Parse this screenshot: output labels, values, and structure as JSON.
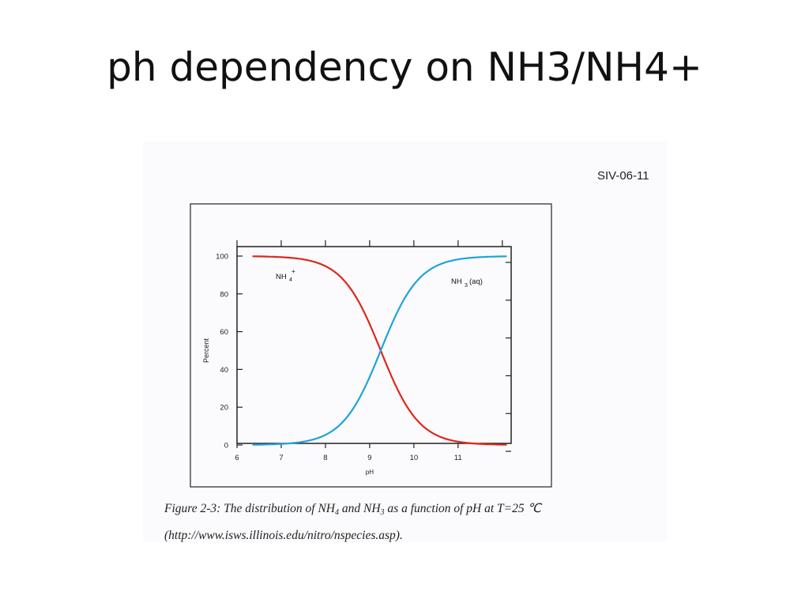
{
  "slide": {
    "title": "ph dependency on NH3/NH4+"
  },
  "scan": {
    "code": "SIV-06-11",
    "caption": {
      "part1": "Figure 2-3: The distribution of NH",
      "sub1": "4",
      "part2": " and NH",
      "sub2": "3",
      "part3": " as a function of pH at T=25 ℃",
      "line2": "(http://www.isws.illinois.edu/nitro/nspecies.asp)."
    }
  },
  "chart_data": {
    "type": "line",
    "xlabel": "pH",
    "ylabel": "Percent",
    "xlim": [
      6,
      12.2
    ],
    "ylim": [
      0,
      100
    ],
    "x_ticks": [
      6,
      7,
      8,
      9,
      10,
      11
    ],
    "y_ticks": [
      0,
      20,
      40,
      60,
      80,
      100
    ],
    "grid": false,
    "pKa": 9.25,
    "x": [
      6.0,
      6.25,
      6.5,
      6.75,
      7.0,
      7.25,
      7.5,
      7.75,
      8.0,
      8.25,
      8.5,
      8.75,
      9.0,
      9.25,
      9.5,
      9.75,
      10.0,
      10.25,
      10.5,
      10.75,
      11.0,
      11.25,
      11.5,
      11.75,
      12.0
    ],
    "series": [
      {
        "name": "NH4+",
        "label": "NH",
        "label_sub": "4",
        "label_sup": "+",
        "color": "#e0261b",
        "values": [
          99.94,
          99.9,
          99.8,
          99.7,
          99.4,
          99.0,
          98.2,
          96.9,
          94.7,
          90.9,
          84.9,
          76.0,
          64.0,
          50.0,
          36.0,
          24.0,
          15.1,
          9.1,
          5.3,
          3.1,
          1.7,
          1.0,
          0.6,
          0.3,
          0.2
        ]
      },
      {
        "name": "NH3(aq)",
        "label": "NH",
        "label_sub": "3",
        "label_after": "(aq)",
        "color": "#1fa3dc",
        "values": [
          0.06,
          0.1,
          0.2,
          0.3,
          0.6,
          1.0,
          1.8,
          3.1,
          5.3,
          9.1,
          15.1,
          24.0,
          36.0,
          50.0,
          64.0,
          76.0,
          84.9,
          90.9,
          94.7,
          96.9,
          98.3,
          99.0,
          99.4,
          99.7,
          99.8
        ]
      }
    ]
  }
}
